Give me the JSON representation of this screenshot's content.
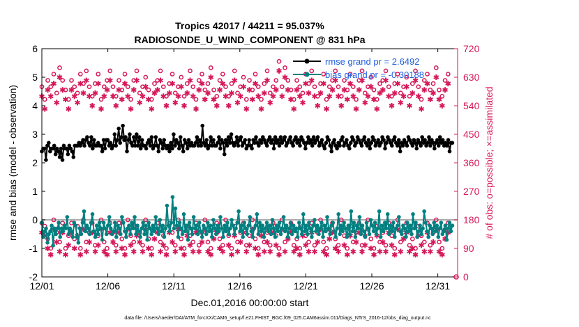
{
  "chart_data": {
    "type": "line",
    "title_line1": "Tropics 42017 / 44211 = 95.037%",
    "title_line2": "RADIOSONDE_U_WIND_COMPONENT @ 831 hPa",
    "xlabel": "Dec.01,2016 00:00:00 start",
    "ylabel_left": "rmse and bias (model - observation)",
    "ylabel_right": "# of obs: o=possible; ×=assimilated",
    "footer": "data file: /Users/raeder/DAI/ATM_forcXX/CAM6_setup/f.e21.FHIST_BGC.f09_025.CAM6assim.011/Diags_NTrS_2016-12/obs_diag_output.nc",
    "xlim": [
      0,
      31.5
    ],
    "ylim_left": [
      -2,
      6
    ],
    "ylim_right": [
      0,
      720
    ],
    "x_ticks": [
      {
        "value": 0,
        "label": "12/01"
      },
      {
        "value": 5,
        "label": "12/06"
      },
      {
        "value": 10,
        "label": "12/11"
      },
      {
        "value": 15,
        "label": "12/16"
      },
      {
        "value": 20,
        "label": "12/21"
      },
      {
        "value": 25,
        "label": "12/26"
      },
      {
        "value": 30,
        "label": "12/31"
      }
    ],
    "y_ticks_left": [
      "-2",
      "-1",
      "0",
      "1",
      "2",
      "3",
      "4",
      "5",
      "6"
    ],
    "y_ticks_right": [
      "0",
      "90",
      "180",
      "270",
      "360",
      "450",
      "540",
      "630",
      "720"
    ],
    "legend": {
      "position": "top-right",
      "entries": [
        "rmse grand pr = 2.6492",
        "bias grand pr = -0.30188"
      ]
    },
    "zero_line": 0,
    "colors": {
      "rmse": "#000000",
      "bias": "#008080",
      "obs": "#d6195a",
      "right_axis": "#d6195a",
      "legend_text": "#1f5de0",
      "zero_line": "#aaaaaa"
    },
    "time_step_days": 0.25,
    "series": [
      {
        "name": "rmse",
        "axis": "left",
        "values": [
          2.4,
          2.5,
          2.5,
          2.1,
          2.6,
          2.7,
          2.4,
          2.5,
          2.5,
          2.6,
          2.3,
          2.5,
          2.4,
          2.2,
          2.5,
          2.1,
          2.6,
          2.5,
          2.5,
          2.3,
          2.6,
          2.5,
          2.4,
          2.2,
          2.6,
          2.6,
          2.6,
          2.7,
          2.6,
          2.7,
          2.8,
          2.6,
          2.8,
          2.9,
          2.7,
          2.6,
          2.9,
          2.5,
          2.8,
          2.6,
          2.6,
          2.7,
          2.6,
          2.6,
          2.4,
          2.8,
          2.5,
          2.8,
          2.8,
          2.6,
          2.7,
          2.5,
          2.6,
          3.0,
          2.6,
          2.8,
          3.2,
          2.7,
          2.9,
          3.3,
          2.8,
          2.9,
          2.4,
          2.8,
          3.0,
          2.7,
          2.6,
          2.9,
          2.6,
          3.0,
          2.6,
          2.9,
          2.5,
          2.8,
          2.6,
          2.6,
          2.5,
          2.7,
          2.8,
          2.6,
          2.9,
          2.5,
          2.6,
          2.9,
          2.6,
          2.4,
          2.8,
          2.7,
          2.5,
          2.8,
          2.6,
          2.5,
          2.6,
          2.4,
          2.7,
          2.5,
          3.0,
          2.6,
          2.8,
          2.7,
          2.5,
          2.9,
          2.6,
          2.4,
          2.8,
          2.7,
          2.5,
          2.8,
          2.6,
          2.7,
          2.6,
          2.6,
          2.7,
          2.9,
          2.6,
          2.8,
          2.6,
          3.3,
          2.7,
          2.6,
          2.8,
          2.5,
          2.6,
          2.9,
          2.6,
          2.8,
          2.6,
          2.6,
          2.7,
          2.9,
          2.5,
          2.8,
          2.7,
          2.3,
          2.8,
          2.6,
          2.9,
          2.7,
          3.0,
          2.7,
          2.6,
          2.7,
          2.9,
          2.6,
          2.8,
          2.9,
          2.6,
          2.7,
          2.8,
          2.5,
          2.6,
          2.8,
          2.6,
          2.5,
          2.8,
          2.7,
          2.9,
          2.7,
          2.6,
          2.8,
          2.7,
          2.9,
          2.8,
          2.7,
          2.6,
          2.8,
          2.9,
          2.7,
          2.8,
          2.5,
          2.9,
          2.7,
          2.8,
          2.6,
          2.9,
          2.7,
          2.8,
          2.9,
          2.6,
          2.7,
          2.8,
          2.9,
          2.7,
          2.6,
          2.8,
          2.9,
          2.7,
          2.8,
          2.6,
          2.9,
          2.8,
          2.7,
          2.5,
          2.7,
          2.9,
          2.7,
          2.8,
          2.6,
          2.9,
          2.7,
          2.8,
          2.9,
          2.6,
          2.7,
          2.8,
          2.6,
          2.5,
          2.7,
          2.9,
          2.8,
          2.6,
          2.4,
          2.7,
          2.8,
          2.6,
          2.5,
          2.7,
          2.6,
          2.8,
          2.9,
          2.6,
          2.7,
          2.8,
          2.6,
          2.5,
          2.7,
          2.9,
          2.8,
          2.6,
          2.7,
          2.9,
          2.8,
          2.7,
          2.6,
          2.8,
          2.9,
          2.7,
          2.6,
          2.8,
          2.5,
          2.7,
          2.9,
          2.8,
          2.6,
          2.7,
          2.8,
          2.6,
          2.7,
          2.9,
          2.8,
          2.5,
          2.7,
          2.9,
          2.8,
          2.7,
          2.6,
          2.8,
          2.9,
          2.7,
          2.6,
          2.8,
          2.4,
          2.7,
          2.6,
          2.8,
          2.7,
          2.6,
          2.9,
          2.8,
          2.7,
          2.6,
          2.8,
          2.7,
          2.5,
          2.8,
          2.7,
          2.6,
          2.9,
          2.7,
          2.8,
          2.6,
          2.7,
          2.9,
          2.6,
          2.8,
          2.7,
          2.5,
          2.7,
          2.8,
          2.6,
          2.9,
          2.7,
          2.8,
          2.6,
          2.7,
          2.6,
          2.8,
          2.4,
          2.7,
          2.7
        ]
      },
      {
        "name": "bias",
        "axis": "left",
        "values": [
          -0.1,
          -0.6,
          -0.4,
          -0.3,
          -0.8,
          -0.5,
          -0.4,
          -0.2,
          -0.9,
          -0.3,
          -0.5,
          -0.3,
          -0.1,
          -0.6,
          -0.3,
          -0.4,
          -0.2,
          -0.3,
          0.1,
          -0.5,
          -0.3,
          -0.4,
          -0.6,
          -0.1,
          -0.2,
          -0.6,
          -0.8,
          -0.3,
          -0.5,
          -0.1,
          0.3,
          -0.4,
          -0.2,
          -0.3,
          -0.5,
          -0.1,
          0.2,
          -0.4,
          -0.6,
          -0.2,
          -0.5,
          -0.1,
          -0.3,
          -0.7,
          -0.1,
          -0.3,
          -0.5,
          -0.2,
          0.1,
          -0.3,
          -0.5,
          -0.4,
          -0.1,
          -0.6,
          -0.2,
          -0.3,
          -0.5,
          0.1,
          -0.1,
          -0.4,
          -0.6,
          -0.3,
          -0.2,
          -0.5,
          -0.1,
          -0.3,
          0.1,
          -0.5,
          -0.2,
          -0.4,
          -0.6,
          -0.3,
          -0.1,
          -0.5,
          -0.2,
          -0.7,
          -0.1,
          -0.3,
          -0.5,
          -0.2,
          -0.4,
          0.1,
          -0.3,
          -0.5,
          0.0,
          -0.4,
          -0.2,
          -0.6,
          -0.3,
          0.5,
          -0.2,
          -0.4,
          -0.1,
          0.8,
          -0.3,
          0.4,
          -0.2,
          -0.6,
          -0.1,
          -0.3,
          -0.5,
          0.2,
          -0.4,
          -0.2,
          -0.7,
          -0.1,
          -0.3,
          -0.5,
          0.1,
          -0.3,
          -0.2,
          -0.5,
          -0.1,
          -0.4,
          -0.6,
          -0.2,
          -0.3,
          -0.5,
          -0.1,
          -0.4,
          -0.2,
          -0.6,
          0.0,
          -0.3,
          -0.5,
          -0.2,
          -0.4,
          0.1,
          -0.3,
          -0.6,
          -0.2,
          -0.4,
          -0.1,
          -0.5,
          -0.3,
          0.0,
          -0.2,
          -0.5,
          -0.3,
          -0.1,
          0.3,
          -0.4,
          -0.2,
          -0.6,
          -0.1,
          -0.3,
          -0.5,
          -0.2,
          0.1,
          -0.4,
          -0.6,
          -0.3,
          -0.2,
          0.2,
          -0.5,
          -0.1,
          -0.4,
          -0.2,
          -0.6,
          -0.3,
          -0.1,
          -0.4,
          -0.2,
          -0.5,
          0.0,
          -0.3,
          -0.6,
          -0.2,
          -0.4,
          -0.1,
          -0.5,
          -0.3,
          0.1,
          -0.4,
          -0.2,
          -0.6,
          -0.3,
          -0.1,
          -0.5,
          -0.2,
          -0.4,
          -0.3,
          -0.6,
          -0.1,
          -0.3,
          -0.5,
          0.2,
          -0.4,
          -0.2,
          -0.5,
          -0.1,
          -0.3,
          -0.6,
          -0.2,
          0.0,
          -0.4,
          -0.2,
          -0.5,
          -0.3,
          -0.1,
          -0.6,
          -0.2,
          -0.4,
          0.1,
          -0.3,
          -0.5,
          -0.2,
          -0.1,
          -0.4,
          -0.6,
          -0.3,
          0.2,
          -0.5,
          -0.2,
          -0.4,
          -0.1,
          -0.3,
          -0.6,
          -0.2,
          -0.5,
          0.3,
          -0.4,
          -0.1,
          -0.6,
          -0.2,
          -0.3,
          0.1,
          -0.5,
          -0.2,
          -0.4,
          -0.6,
          -0.1,
          -0.3,
          -0.5,
          0.0,
          -0.2,
          -0.4,
          -0.1,
          -0.5,
          -0.3,
          0.3,
          -0.6,
          -0.2,
          -0.4,
          -0.1,
          -0.3,
          0.2,
          -0.5,
          -0.2,
          -0.4,
          -0.1,
          -0.6,
          -0.3,
          -0.2,
          0.1,
          -0.4,
          -0.5,
          -0.2,
          -0.3,
          -0.6,
          -0.1,
          -0.4,
          -0.2,
          -0.5,
          0.2,
          -0.3,
          -0.1,
          -0.6,
          -0.4,
          -0.2,
          -0.5,
          -0.3,
          0.3,
          -0.1,
          -0.4,
          -0.6,
          -0.2,
          -0.3,
          -0.5,
          -0.1,
          -0.4,
          -0.2,
          -0.6,
          -0.3,
          -0.1,
          -0.5,
          -0.4,
          -0.2,
          -0.7,
          -0.3,
          -0.1,
          -0.4,
          -0.2
        ]
      },
      {
        "name": "obs_possible",
        "axis": "right",
        "marker": "circle",
        "values": [
          600,
          560,
          620,
          600,
          640,
          580,
          660,
          620,
          590,
          560,
          620,
          600,
          580,
          640,
          610,
          650,
          600,
          570,
          610,
          640,
          560,
          600,
          620,
          650,
          600,
          570,
          620,
          590,
          640,
          600,
          560,
          620,
          650,
          580,
          600,
          630,
          590,
          560,
          610,
          620,
          650,
          600,
          570,
          610,
          640,
          580,
          600,
          630,
          570,
          610,
          650,
          600,
          560,
          620,
          640,
          590,
          610,
          660,
          590,
          570,
          620,
          640,
          600,
          570,
          610,
          650,
          580,
          600,
          630,
          560,
          620,
          590,
          640,
          600,
          560,
          610,
          650,
          580,
          600,
          620,
          680,
          600,
          660,
          620,
          590,
          560,
          620,
          600,
          580,
          640,
          610,
          650,
          600,
          570,
          610,
          640,
          560,
          600,
          620,
          650,
          600,
          570,
          620,
          590,
          640,
          600,
          560,
          620,
          650,
          580,
          600,
          630,
          590,
          560,
          610,
          620,
          650,
          600,
          570,
          610,
          640,
          580,
          600,
          630,
          570,
          610,
          650,
          600,
          560,
          620,
          640,
          590,
          610,
          660,
          590,
          570,
          620,
          640
        ]
      },
      {
        "name": "obs_assimilated",
        "axis": "right",
        "marker": "star",
        "values": [
          570,
          530,
          590,
          570,
          610,
          550,
          630,
          590,
          560,
          530,
          590,
          570,
          550,
          610,
          580,
          620,
          570,
          540,
          580,
          610,
          530,
          570,
          590,
          620,
          570,
          540,
          590,
          560,
          610,
          570,
          530,
          590,
          620,
          550,
          570,
          600,
          560,
          530,
          580,
          590,
          620,
          570,
          540,
          580,
          610,
          550,
          570,
          600,
          540,
          580,
          620,
          570,
          530,
          590,
          610,
          560,
          580,
          630,
          560,
          540,
          590,
          610,
          570,
          540,
          580,
          620,
          550,
          570,
          600,
          530,
          590,
          560,
          610,
          570,
          530,
          580,
          620,
          550,
          570,
          590,
          650,
          570,
          630,
          590,
          560,
          530,
          590,
          570,
          550,
          610,
          580,
          620,
          570,
          540,
          580,
          610,
          530,
          570,
          590,
          620,
          570,
          540,
          590,
          560,
          610,
          570,
          530,
          590,
          620,
          550,
          570,
          600,
          560,
          530,
          580,
          590,
          620,
          570,
          540,
          580,
          610,
          550,
          570,
          600,
          540,
          580,
          620,
          570,
          530,
          590,
          610,
          560,
          580,
          630,
          560,
          540,
          590,
          610
        ]
      }
    ],
    "bias_obs_possible_values": [
      170,
      160,
      120,
      90,
      180,
      140,
      110,
      170,
      90,
      130,
      170,
      120,
      160,
      90,
      180,
      110,
      140,
      170,
      100,
      130,
      180,
      110,
      90,
      170,
      140,
      100,
      170,
      120,
      90,
      180,
      130,
      110,
      160,
      140,
      100,
      180,
      120,
      90,
      150,
      170,
      110,
      130,
      90,
      170,
      140,
      100,
      180,
      120,
      90,
      160,
      130,
      110,
      170,
      100,
      140,
      180,
      110,
      90,
      150,
      170,
      120,
      100,
      180,
      130,
      90,
      160,
      110,
      140,
      170,
      100,
      130,
      180,
      120,
      90,
      160,
      110,
      140,
      100,
      170,
      130,
      90,
      180,
      110,
      150,
      170,
      100,
      120,
      90,
      160,
      130,
      110,
      170,
      100,
      140,
      180,
      110,
      90,
      150,
      170,
      120,
      100,
      180,
      130,
      90,
      160,
      110,
      140,
      170,
      100,
      130,
      180,
      120,
      90,
      160,
      110,
      140,
      100,
      170,
      130,
      90,
      180,
      110,
      150,
      170,
      100,
      120,
      90,
      160,
      130,
      110,
      170,
      100,
      140,
      180,
      110,
      90,
      150,
      170
    ],
    "bias_obs_assimilated_values": [
      140,
      130,
      90,
      70,
      150,
      110,
      80,
      140,
      70,
      100,
      140,
      90,
      130,
      70,
      150,
      80,
      110,
      140,
      80,
      100,
      150,
      80,
      70,
      140,
      110,
      80,
      140,
      90,
      70,
      150,
      100,
      80,
      130,
      110,
      80,
      150,
      90,
      70,
      120,
      140,
      80,
      100,
      70,
      140,
      110,
      80,
      150,
      90,
      70,
      130,
      100,
      80,
      140,
      80,
      110,
      150,
      80,
      70,
      120,
      140,
      90,
      80,
      150,
      100,
      70,
      130,
      80,
      110,
      140,
      80,
      100,
      150,
      90,
      70,
      130,
      80,
      110,
      80,
      140,
      100,
      70,
      150,
      80,
      120,
      140,
      80,
      90,
      70,
      130,
      100,
      80,
      140,
      80,
      110,
      150,
      80,
      70,
      120,
      140,
      90,
      80,
      150,
      100,
      70,
      130,
      80,
      110,
      140,
      80,
      100,
      150,
      90,
      70,
      130,
      80,
      110,
      80,
      140,
      100,
      70,
      150,
      80,
      120,
      140,
      80,
      90,
      70,
      130,
      100,
      80,
      140,
      80,
      110,
      150,
      80,
      70,
      120,
      140
    ]
  }
}
